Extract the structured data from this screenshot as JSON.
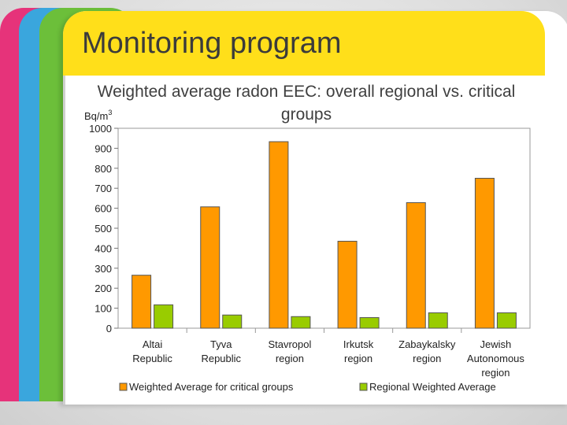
{
  "slide": {
    "title": "Monitoring program"
  },
  "chart_data": {
    "type": "bar",
    "title": "Weighted average radon EEC: overall regional vs. critical groups",
    "ylabel_base": "Bq/m",
    "ylabel_sup": "3",
    "ylim": [
      0,
      1000
    ],
    "yticks": [
      0,
      100,
      200,
      300,
      400,
      500,
      600,
      700,
      800,
      900,
      1000
    ],
    "categories": [
      [
        "Altai",
        "Republic"
      ],
      [
        "Tyva",
        "Republic"
      ],
      [
        "Stavropol",
        "region"
      ],
      [
        "Irkutsk",
        "region"
      ],
      [
        "Zabaykalsky",
        "region"
      ],
      [
        "Jewish",
        "Autonomous",
        "region"
      ]
    ],
    "series": [
      {
        "name": "Weighted Average for critical groups",
        "color": "#ff9900",
        "values": [
          265,
          607,
          933,
          435,
          628,
          750
        ]
      },
      {
        "name": "Regional Weighted Average",
        "color": "#99cc00",
        "values": [
          117,
          66,
          58,
          53,
          77,
          77
        ]
      }
    ],
    "legend_position": "bottom"
  }
}
